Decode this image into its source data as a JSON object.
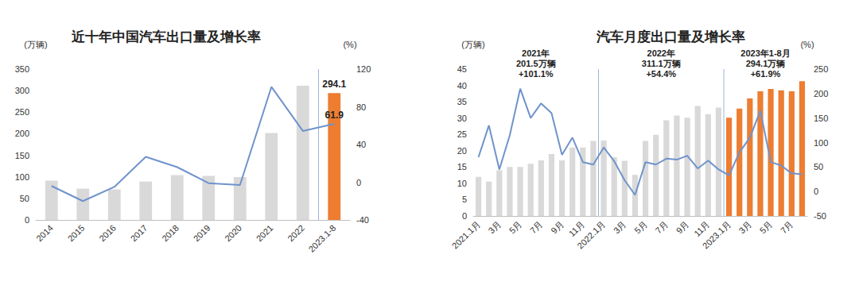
{
  "chart_data": [
    {
      "type": "bar",
      "title": "近十年中国汽车出口量及增长率",
      "y_label": "(万辆)",
      "y2_label": "(%)",
      "categories": [
        "2014",
        "2015",
        "2016",
        "2017",
        "2018",
        "2019",
        "2020",
        "2021",
        "2022",
        "2023.1-8"
      ],
      "series": [
        {
          "type": "bar",
          "colors": [
            "#d9d9d9",
            "#d9d9d9",
            "#d9d9d9",
            "#d9d9d9",
            "#d9d9d9",
            "#d9d9d9",
            "#d9d9d9",
            "#d9d9d9",
            "#d9d9d9",
            "#ed7d31"
          ],
          "values": [
            91.0,
            72.6,
            70.8,
            89.1,
            104.1,
            102.4,
            99.5,
            201.5,
            311.1,
            294.1
          ],
          "value_labels": [
            null,
            null,
            null,
            null,
            null,
            null,
            null,
            null,
            null,
            "294.1"
          ]
        },
        {
          "type": "line",
          "axis": "y2",
          "color": "#6f93cb",
          "values": [
            -4,
            -20,
            -5,
            27,
            16,
            -1,
            -3,
            101.1,
            54.4,
            61.9
          ],
          "value_labels": [
            null,
            null,
            null,
            null,
            null,
            null,
            null,
            null,
            null,
            "61.9"
          ]
        }
      ],
      "ylim": [
        0,
        350
      ],
      "yticks": [
        0,
        50,
        100,
        150,
        200,
        250,
        300,
        350
      ],
      "y2lim": [
        -40,
        120
      ],
      "y2ticks": [
        -40,
        0,
        40,
        80,
        120
      ],
      "grid": false
    },
    {
      "type": "bar",
      "title": "汽车月度出口量及增长率",
      "y_label": "(万辆)",
      "y2_label": "(%)",
      "annotations": [
        "2021年\n201.5万辆\n+101.1%",
        "2022年\n311.1万辆\n+54.4%",
        "2023年1-8月\n294.1万辆\n+61.9%"
      ],
      "categories": [
        "2021.1月",
        null,
        "3月",
        null,
        "5月",
        null,
        "7月",
        null,
        "9月",
        null,
        "11月",
        null,
        "2022.1月",
        null,
        "3月",
        null,
        "5月",
        null,
        "7月",
        null,
        "9月",
        null,
        "11月",
        null,
        "2023.1月",
        null,
        "3月",
        null,
        "5月",
        null,
        "7月",
        null
      ],
      "series": [
        {
          "type": "bar",
          "colors": [
            "#d9d9d9",
            "#d9d9d9",
            "#d9d9d9",
            "#d9d9d9",
            "#d9d9d9",
            "#d9d9d9",
            "#d9d9d9",
            "#d9d9d9",
            "#d9d9d9",
            "#d9d9d9",
            "#d9d9d9",
            "#d9d9d9",
            "#d9d9d9",
            "#d9d9d9",
            "#d9d9d9",
            "#d9d9d9",
            "#d9d9d9",
            "#d9d9d9",
            "#d9d9d9",
            "#d9d9d9",
            "#d9d9d9",
            "#d9d9d9",
            "#d9d9d9",
            "#d9d9d9",
            "#ed7d31",
            "#ed7d31",
            "#ed7d31",
            "#ed7d31",
            "#ed7d31",
            "#ed7d31",
            "#ed7d31",
            "#ed7d31"
          ],
          "values": [
            12.0,
            10.5,
            14.0,
            15.0,
            15.0,
            16.0,
            17.0,
            19.0,
            17.0,
            21.0,
            21.0,
            23.0,
            23.1,
            18.0,
            16.9,
            12.6,
            23.0,
            24.9,
            29.3,
            30.8,
            30.1,
            33.7,
            31.2,
            33.2,
            30.1,
            32.9,
            36.0,
            38.2,
            38.9,
            38.5,
            38.2,
            41.3
          ]
        },
        {
          "type": "line",
          "axis": "y2",
          "color": "#6f93cb",
          "values": [
            70,
            135,
            45,
            115,
            210,
            150,
            180,
            160,
            75,
            110,
            60,
            55,
            90,
            62,
            23,
            -7,
            60,
            55,
            67,
            65,
            73,
            47,
            63,
            45,
            33,
            80,
            110,
            165,
            60,
            53,
            37,
            35
          ]
        }
      ],
      "ylim": [
        0,
        45
      ],
      "yticks": [
        0,
        5,
        10,
        15,
        20,
        25,
        30,
        35,
        40,
        45
      ],
      "y2lim": [
        -50,
        250
      ],
      "y2ticks": [
        -50,
        0,
        50,
        100,
        150,
        200,
        250
      ],
      "grid": false
    }
  ]
}
